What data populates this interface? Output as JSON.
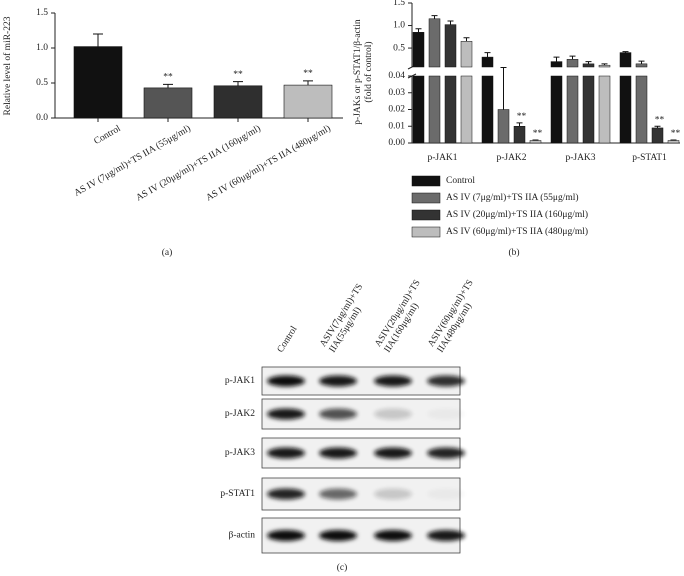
{
  "chart_data": [
    {
      "type": "bar",
      "panel_label": "(a)",
      "ylabel": "Relative level of miR-223",
      "categories": [
        "Control",
        "AS IV (7μg/ml)+TS IIA (55μg/ml)",
        "AS IV (20μg/ml)+TS IIA (160μg/ml)",
        "AS IV (60μg/ml)+TS IIA (480μg/ml)"
      ],
      "values": [
        1.02,
        0.43,
        0.46,
        0.47
      ],
      "errors": [
        0.18,
        0.05,
        0.06,
        0.06
      ],
      "significance": [
        null,
        "**",
        "**",
        "**"
      ],
      "colors": [
        "#111111",
        "#555555",
        "#2f2f2f",
        "#bdbdbd"
      ],
      "ylim": [
        0,
        1.5
      ],
      "yticks": [
        {
          "value": 0,
          "label": "0.0"
        },
        0.5,
        {
          "value": 1,
          "label": "1.0"
        },
        1.5
      ]
    },
    {
      "type": "broken-bar",
      "panel_label": "(b)",
      "ylabel": [
        "p-JAKs or p-STAT1/β-actin",
        "(fold of control)"
      ],
      "categories": [
        "p-JAK1",
        "p-JAK2",
        "p-JAK3",
        "p-STAT1"
      ],
      "series": [
        {
          "name": "Control",
          "color": "#111111",
          "values": [
            0.85,
            0.3,
            0.2,
            0.4
          ],
          "errors": [
            0.08,
            0.1,
            0.1,
            0.02
          ],
          "significance": [
            null,
            null,
            null,
            null
          ]
        },
        {
          "name": "AS IV (7μg/ml)+TS IIA (55μg/ml)",
          "color": "#6b6b6b",
          "values": [
            1.15,
            0.02,
            0.25,
            0.15
          ],
          "errors": [
            0.07,
            0.05,
            0.07,
            0.06
          ],
          "significance": [
            null,
            null,
            null,
            null
          ]
        },
        {
          "name": "AS IV (20μg/ml)+TS IIA (160μg/ml)",
          "color": "#333333",
          "values": [
            1.02,
            0.01,
            0.15,
            0.009
          ],
          "errors": [
            0.08,
            0.002,
            0.05,
            0.001
          ],
          "significance": [
            null,
            "**",
            null,
            "**"
          ]
        },
        {
          "name": "AS IV (60μg/ml)+TS IIA (480μg/ml)",
          "color": "#bdbdbd",
          "values": [
            0.65,
            0.0015,
            0.12,
            0.0015
          ],
          "errors": [
            0.08,
            0.0003,
            0.03,
            0.0003
          ],
          "significance": [
            null,
            "**",
            null,
            "**"
          ]
        }
      ],
      "ylim_lower": [
        0,
        0.04
      ],
      "yticks_lower": [
        {
          "value": 0,
          "label": "0.00"
        },
        {
          "value": 0.01,
          "label": "0.01"
        },
        {
          "value": 0.02,
          "label": "0.02"
        },
        {
          "value": 0.03,
          "label": "0.03"
        },
        {
          "value": 0.04,
          "label": "0.04"
        }
      ],
      "ylim_upper": [
        0.08,
        1.5
      ],
      "yticks_upper": [
        0.5,
        {
          "value": 1,
          "label": "1.0"
        },
        1.5
      ]
    }
  ],
  "blot": {
    "panel_label": "(c)",
    "columns": [
      [
        "Control"
      ],
      [
        "ASIV(7μg/ml)+TS",
        "IIA(55μg/ml)"
      ],
      [
        "ASIV(20μg/ml)+TS",
        "IIA(160μg/ml)"
      ],
      [
        "ASIV(60μg/ml)+TS",
        "IIA(480μg/ml)"
      ]
    ],
    "rows": [
      "p-JAK1",
      "p-JAK2",
      "p-JAK3",
      "p-STAT1",
      "β-actin"
    ]
  }
}
